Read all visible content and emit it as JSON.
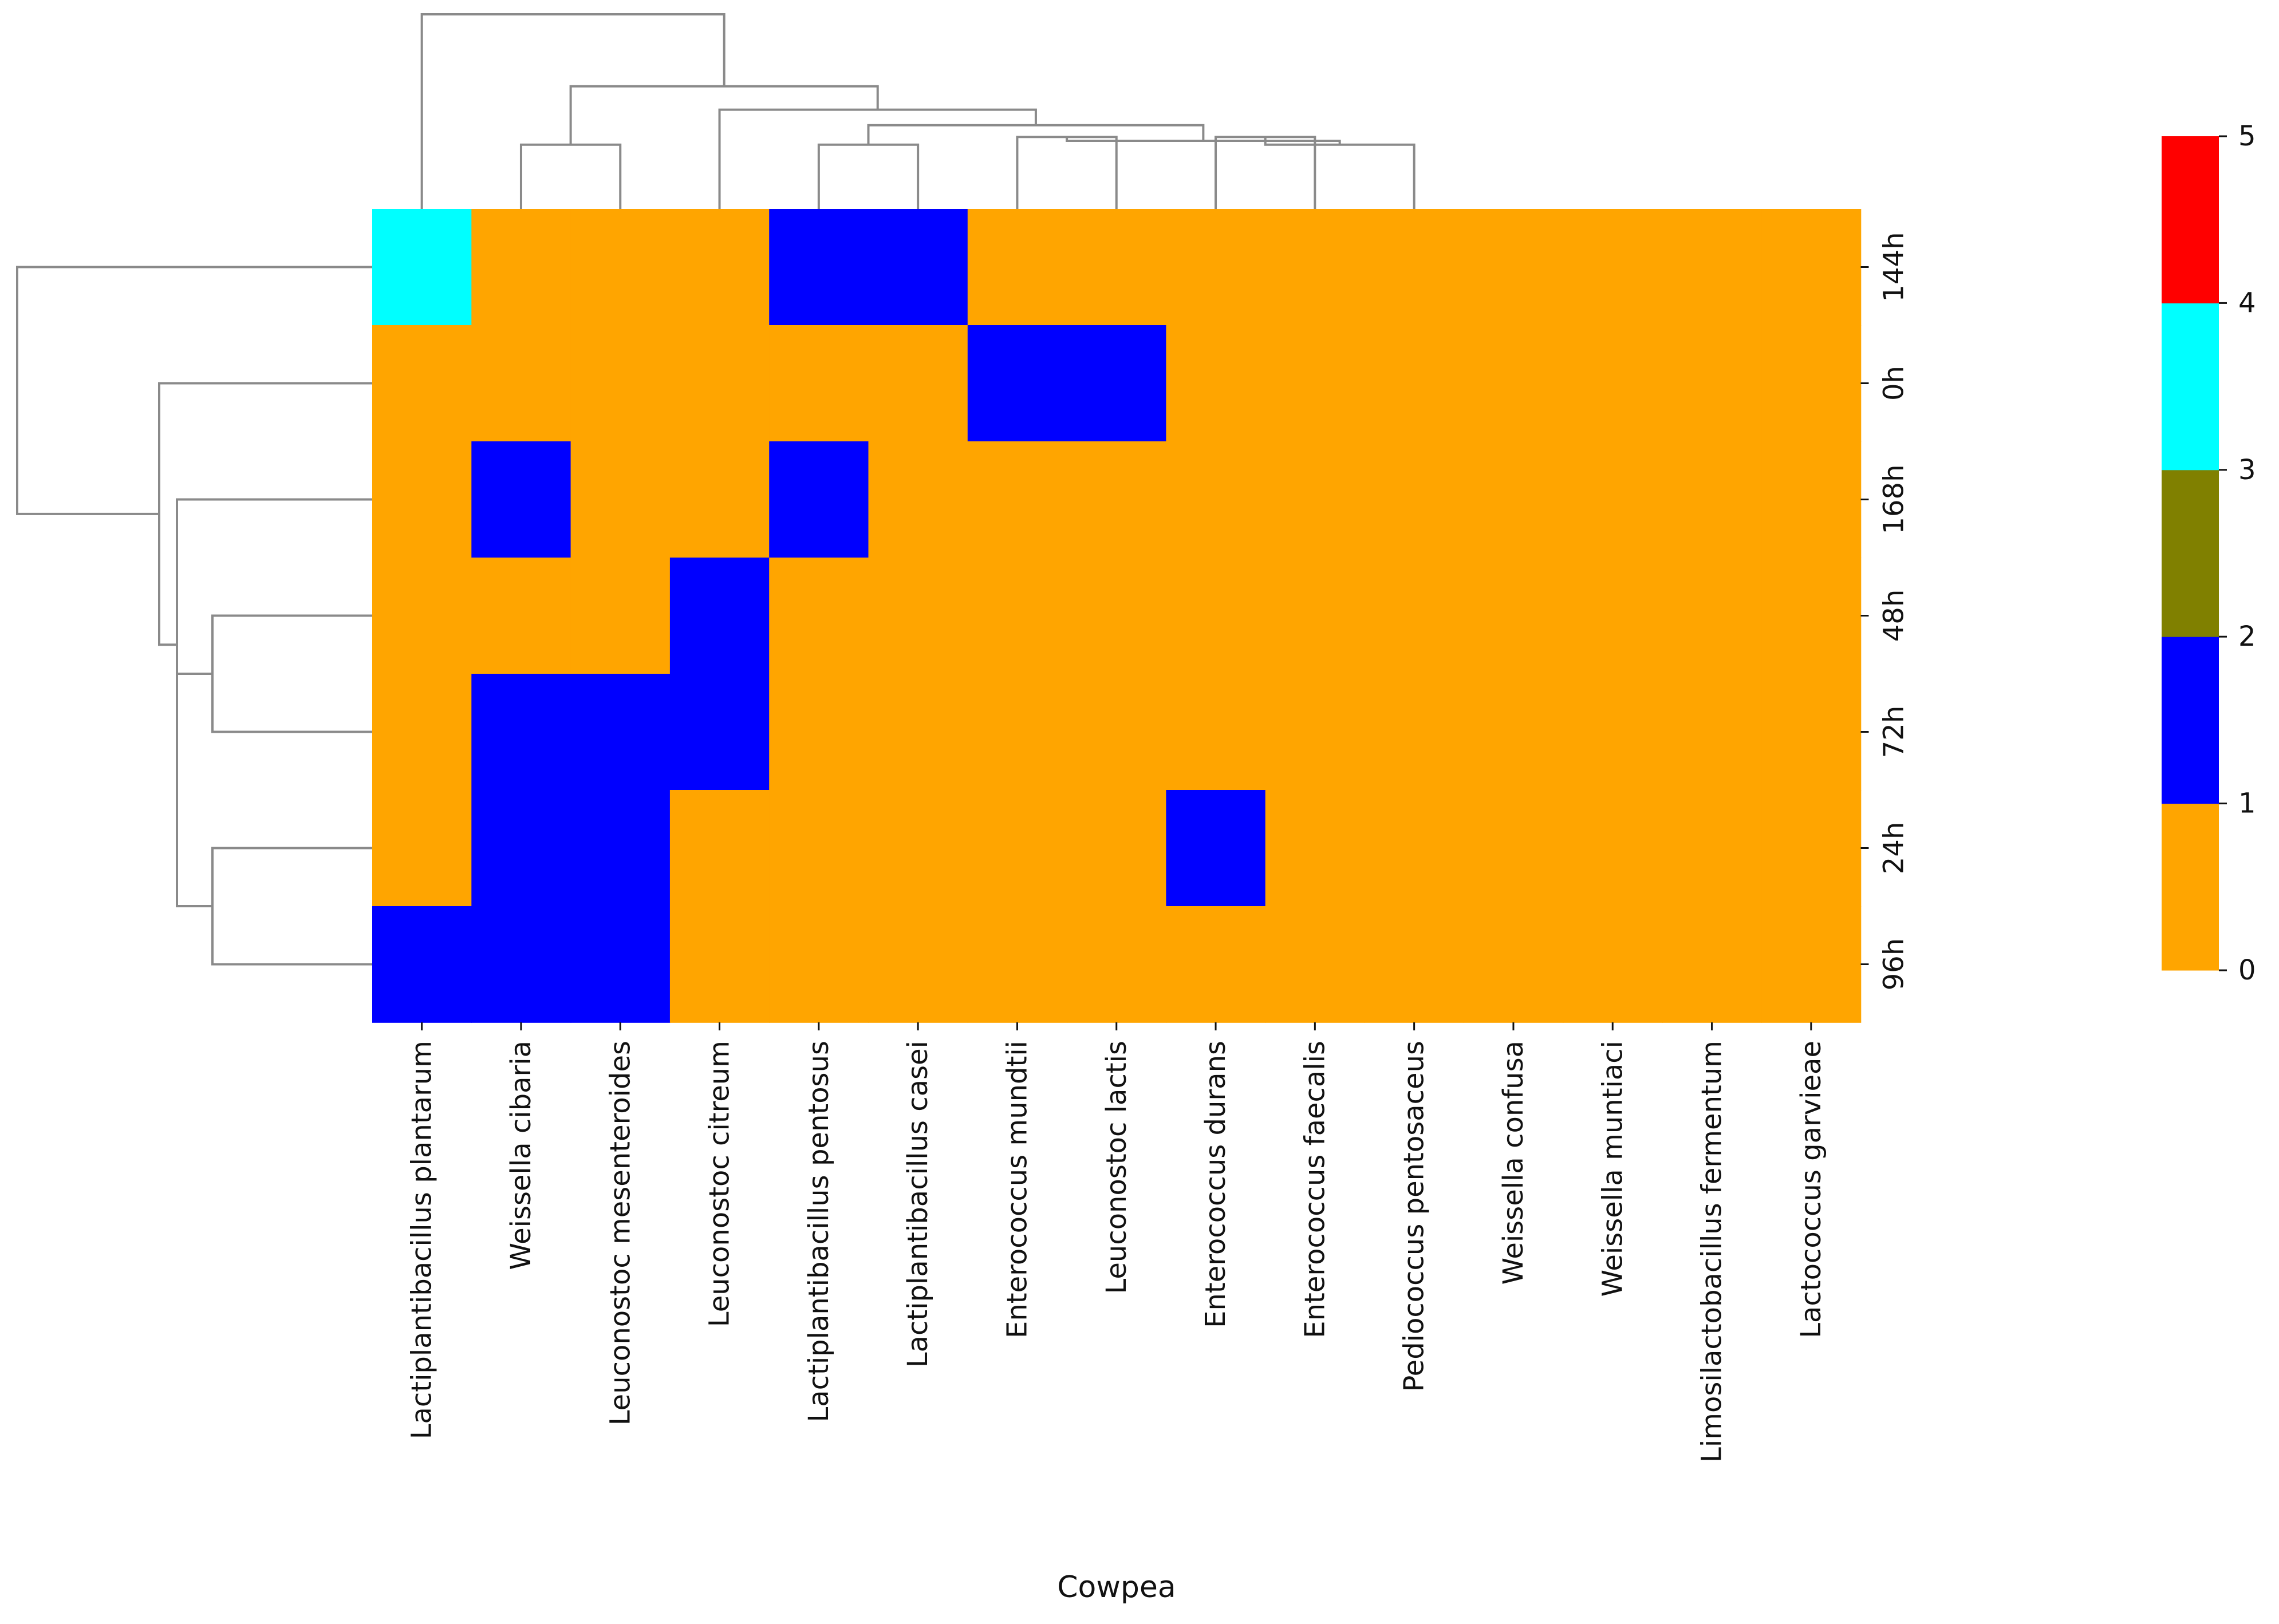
{
  "chart_data": {
    "type": "heatmap",
    "variant": "clustermap",
    "title": "",
    "xlabel": "Cowpea",
    "ylabel": "",
    "rows": [
      "144h",
      "0h",
      "168h",
      "48h",
      "72h",
      "24h",
      "96h"
    ],
    "columns": [
      "Lactiplantibacillus plantarum",
      "Weissella cibaria",
      "Leuconostoc mesenteroides",
      "Leuconostoc citreum",
      "Lactiplantibacillus pentosus",
      "Lactiplantibacillus casei",
      "Enterococcus mundtii",
      "Leuconostoc lactis",
      "Enterococcus durans",
      "Enterococcus faecalis",
      "Pediococcus pentosaceus",
      "Weissella confusa",
      "Weissella muntiaci",
      "Limosilactobacillus fermentum",
      "Lactococcus garvieae"
    ],
    "values": [
      [
        3,
        0,
        0,
        0,
        1,
        1,
        0,
        0,
        0,
        0,
        0,
        0,
        0,
        0,
        0
      ],
      [
        0,
        0,
        0,
        0,
        0,
        0,
        1,
        1,
        0,
        0,
        0,
        0,
        0,
        0,
        0
      ],
      [
        0,
        1,
        0,
        0,
        1,
        0,
        0,
        0,
        0,
        0,
        0,
        0,
        0,
        0,
        0
      ],
      [
        0,
        0,
        0,
        1,
        0,
        0,
        0,
        0,
        0,
        0,
        0,
        0,
        0,
        0,
        0
      ],
      [
        0,
        1,
        1,
        1,
        0,
        0,
        0,
        0,
        0,
        0,
        0,
        0,
        0,
        0,
        0
      ],
      [
        0,
        1,
        1,
        0,
        0,
        0,
        0,
        0,
        1,
        0,
        0,
        0,
        0,
        0,
        0
      ],
      [
        1,
        1,
        1,
        0,
        0,
        0,
        0,
        0,
        0,
        0,
        0,
        0,
        0,
        0,
        0
      ]
    ],
    "colorbar": {
      "range": [
        0,
        5
      ],
      "ticks": [
        0,
        1,
        2,
        3,
        4,
        5
      ],
      "bins": [
        {
          "from": 0,
          "to": 1,
          "color": "#FFA500"
        },
        {
          "from": 1,
          "to": 2,
          "color": "#0000FF"
        },
        {
          "from": 2,
          "to": 3,
          "color": "#808000"
        },
        {
          "from": 3,
          "to": 4,
          "color": "#00FFFF"
        },
        {
          "from": 4,
          "to": 5,
          "color": "#FF0000"
        }
      ]
    },
    "row_dendrogram": [
      {
        "from": [
          5,
          6
        ],
        "height": 0.45
      },
      {
        "from": [
          3,
          4
        ],
        "height": 0.45
      },
      {
        "from": [
          "n1",
          "n0"
        ],
        "height": 0.55
      },
      {
        "from": [
          2,
          "n2"
        ],
        "height": 0.55
      },
      {
        "from": [
          1,
          "n3"
        ],
        "height": 0.6
      },
      {
        "from": [
          0,
          "n4"
        ],
        "height": 1.0
      }
    ],
    "col_dendrogram": [
      {
        "from": [
          1,
          2
        ],
        "height": 0.33
      },
      {
        "from": [
          4,
          5
        ],
        "height": 0.33
      },
      {
        "from": [
          6,
          7
        ],
        "height": 0.37
      },
      {
        "from": [
          8,
          9
        ],
        "height": 0.37
      },
      {
        "from": [
          "n3",
          10
        ],
        "height": 0.33
      },
      {
        "from": [
          "n2",
          "n4"
        ],
        "height": 0.35
      },
      {
        "from": [
          "n1",
          "n5"
        ],
        "height": 0.43
      },
      {
        "from": [
          3,
          "n6"
        ],
        "height": 0.51
      },
      {
        "from": [
          "n0",
          "n7"
        ],
        "height": 0.63
      },
      {
        "from": [
          0,
          "n8"
        ],
        "height": 1.0
      }
    ]
  }
}
